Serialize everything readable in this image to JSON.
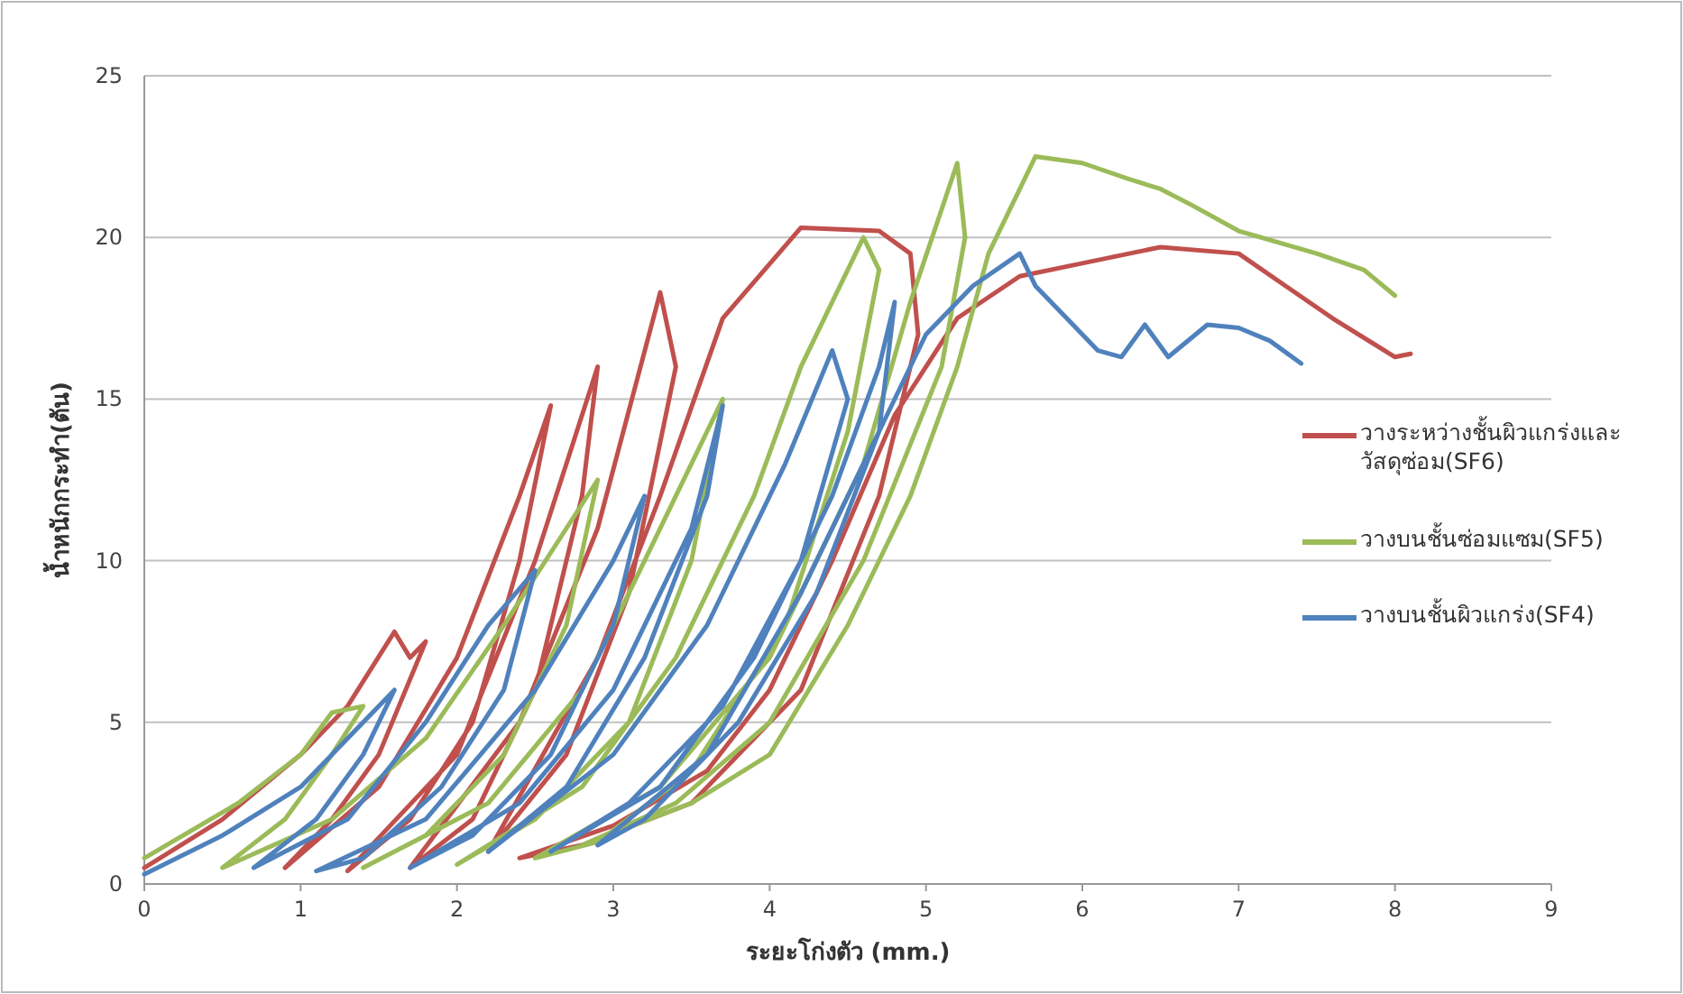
{
  "chart_data": {
    "type": "line",
    "xlabel": "ระยะโก่งตัว (mm.)",
    "ylabel": "น้ำหนักกระทำ(ตัน)",
    "xlim": [
      0,
      9
    ],
    "xticks": [
      0,
      1,
      2,
      3,
      4,
      5,
      6,
      7,
      8,
      9
    ],
    "ylim": [
      0,
      25
    ],
    "yticks": [
      0,
      5,
      10,
      15,
      20,
      25
    ],
    "grid": "y",
    "legend": "right",
    "marker": "none",
    "line_style": "solid",
    "series": [
      {
        "name": "วางระหว่างชั้นผิวแกร่งและวัสดุซ่อม(SF6)",
        "color": "#c0504d",
        "x": [
          0,
          0.5,
          1,
          1.3,
          1.6,
          1.7,
          1.8,
          1.5,
          1.2,
          0.9,
          1.5,
          2,
          2.4,
          2.6,
          2.4,
          2.1,
          1.7,
          1.3,
          2,
          2.5,
          2.9,
          2.8,
          2.5,
          2.1,
          1.7,
          2.4,
          2.9,
          3.3,
          3.4,
          3.1,
          2.7,
          2.2,
          2.9,
          3.3,
          3.7,
          4.2,
          4.7,
          4.9,
          4.95,
          4.7,
          4.2,
          3.5,
          2.8,
          2.4,
          3,
          3.6,
          4,
          4.4,
          4.8,
          5.2,
          5.6,
          6,
          6.5,
          7,
          7.3,
          7.6,
          8,
          8.1
        ],
        "values": [
          0.5,
          2,
          4,
          5.5,
          7.8,
          7,
          7.5,
          4,
          2,
          0.5,
          3,
          7,
          12,
          14.8,
          10,
          5,
          2,
          0.4,
          4,
          10,
          16,
          12,
          6,
          2,
          0.5,
          5,
          11,
          18.3,
          16,
          9,
          4,
          1,
          7,
          12,
          17.5,
          20.3,
          20.2,
          19.5,
          17,
          12,
          6,
          2.5,
          1.2,
          0.8,
          1.8,
          3.5,
          6,
          10,
          14.5,
          17.5,
          18.8,
          19.2,
          19.7,
          19.5,
          18.5,
          17.5,
          16.3,
          16.4
        ]
      },
      {
        "name": "วางบนชั้นซ่อมแซม(SF5)",
        "color": "#9bbb59",
        "x": [
          0,
          0.6,
          1,
          1.2,
          1.4,
          1.2,
          0.9,
          0.5,
          1.2,
          1.8,
          2.3,
          2.7,
          2.9,
          2.7,
          2.3,
          1.8,
          1.4,
          2.2,
          2.8,
          3.2,
          3.5,
          3.7,
          3.5,
          3.1,
          2.5,
          2,
          2.8,
          3.4,
          3.9,
          4.2,
          4.6,
          4.7,
          4.5,
          4.1,
          3.5,
          2.9,
          2.5,
          3.3,
          4,
          4.6,
          4.9,
          5.2,
          5.25,
          5.1,
          4.6,
          4,
          3.4,
          2.8,
          3.5,
          4,
          4.5,
          4.9,
          5.2,
          5.4,
          5.7,
          6,
          6.3,
          6.5,
          6.7,
          7,
          7.5,
          7.8,
          8
        ],
        "values": [
          0.8,
          2.5,
          4,
          5.3,
          5.5,
          4,
          2,
          0.5,
          2,
          4.5,
          8,
          11,
          12.5,
          8,
          4,
          1.5,
          0.5,
          2.5,
          6,
          10,
          13,
          15,
          10,
          5,
          2,
          0.6,
          3,
          7,
          12,
          16,
          20,
          19,
          14,
          8,
          3.5,
          1.3,
          0.8,
          3,
          7,
          13,
          18,
          22.3,
          20,
          16,
          10,
          5,
          2.5,
          1.2,
          2.5,
          4,
          8,
          12,
          16,
          19.5,
          22.5,
          22.3,
          21.8,
          21.5,
          21,
          20.2,
          19.5,
          19,
          18.2
        ]
      },
      {
        "name": "วางบนชั้นผิวแกร่ง(SF4)",
        "color": "#4f81bd",
        "x": [
          0,
          0.5,
          1,
          1.4,
          1.6,
          1.4,
          1.1,
          0.7,
          1.3,
          1.8,
          2.2,
          2.5,
          2.3,
          1.9,
          1.4,
          1.1,
          1.8,
          2.5,
          3,
          3.2,
          3,
          2.6,
          2.1,
          1.7,
          2.4,
          3,
          3.5,
          3.7,
          3.6,
          3.2,
          2.7,
          2.2,
          3,
          3.6,
          4.1,
          4.4,
          4.5,
          4.2,
          3.7,
          3.1,
          2.6,
          3.3,
          3.9,
          4.4,
          4.7,
          4.8,
          4.7,
          4.3,
          3.8,
          3.2,
          2.9,
          3.6,
          4.2,
          4.7,
          5,
          5.3,
          5.6,
          5.7,
          5.9,
          6.1,
          6.25,
          6.4,
          6.55,
          6.8,
          7,
          7.2,
          7.4
        ],
        "values": [
          0.3,
          1.5,
          3,
          5,
          6,
          4,
          2,
          0.5,
          2,
          5,
          8,
          9.7,
          6,
          3,
          0.8,
          0.4,
          2,
          6,
          10,
          12,
          8,
          4,
          1.5,
          0.5,
          2.5,
          6,
          11,
          14.8,
          12,
          7,
          3,
          1,
          4,
          8,
          13,
          16.5,
          15,
          10,
          5.5,
          2.5,
          1,
          3,
          7,
          12,
          16,
          18,
          14,
          9,
          5,
          2,
          1.2,
          4,
          9,
          14,
          17,
          18.5,
          19.5,
          18.5,
          17.5,
          16.5,
          16.3,
          17.3,
          16.3,
          17.3,
          17.2,
          16.8,
          16.1
        ]
      }
    ]
  }
}
